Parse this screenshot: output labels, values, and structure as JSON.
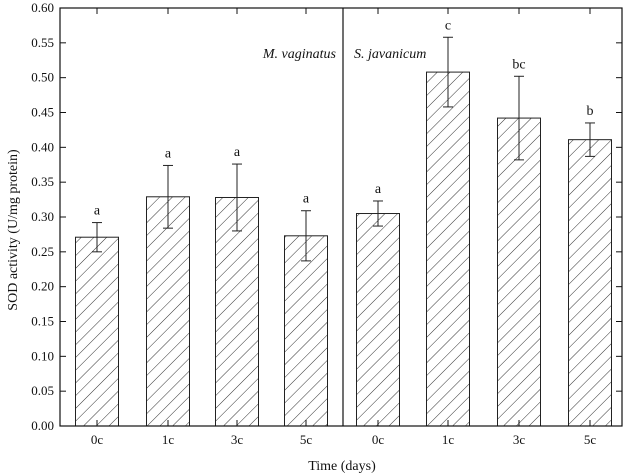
{
  "chart_data": {
    "type": "bar",
    "title": "",
    "xlabel": "Time (days)",
    "ylabel": "SOD activity (U/mg protein)",
    "ylim": [
      0,
      0.6
    ],
    "yticks": [
      "0.00",
      "0.05",
      "0.10",
      "0.15",
      "0.20",
      "0.25",
      "0.30",
      "0.35",
      "0.40",
      "0.45",
      "0.50",
      "0.55",
      "0.60"
    ],
    "bar_fill": "hatched",
    "grid": false,
    "panels": [
      {
        "name": "M. vaginatus",
        "categories": [
          "0c",
          "1c",
          "3c",
          "5c"
        ],
        "values": [
          0.271,
          0.329,
          0.328,
          0.273
        ],
        "errors": [
          0.021,
          0.045,
          0.048,
          0.036
        ],
        "labels": [
          "a",
          "a",
          "a",
          "a"
        ]
      },
      {
        "name": "S. javanicum",
        "categories": [
          "0c",
          "1c",
          "3c",
          "5c"
        ],
        "values": [
          0.305,
          0.508,
          0.442,
          0.411
        ],
        "errors": [
          0.018,
          0.05,
          0.06,
          0.024
        ],
        "labels": [
          "a",
          "c",
          "bc",
          "b"
        ]
      }
    ]
  }
}
